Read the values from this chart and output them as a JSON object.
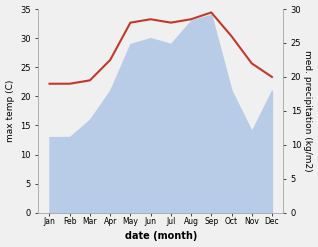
{
  "months": [
    "Jan",
    "Feb",
    "Mar",
    "Apr",
    "May",
    "Jun",
    "Jul",
    "Aug",
    "Sep",
    "Oct",
    "Nov",
    "Dec"
  ],
  "x": [
    0,
    1,
    2,
    3,
    4,
    5,
    6,
    7,
    8,
    9,
    10,
    11
  ],
  "temp": [
    13,
    13,
    16,
    21,
    29,
    30,
    29,
    33,
    34,
    21,
    14,
    21
  ],
  "precip": [
    19,
    19,
    19.5,
    22.5,
    28,
    28.5,
    28,
    28.5,
    29.5,
    26,
    22,
    20
  ],
  "temp_color": "#c0392b",
  "precip_fill_color": "#b8cce8",
  "title": "",
  "xlabel": "date (month)",
  "ylabel_left": "max temp (C)",
  "ylabel_right": "med. precipitation (kg/m2)",
  "ylim_left": [
    0,
    35
  ],
  "ylim_right": [
    0,
    30
  ],
  "yticks_left": [
    0,
    5,
    10,
    15,
    20,
    25,
    30,
    35
  ],
  "yticks_right": [
    0,
    5,
    10,
    15,
    20,
    25,
    30
  ],
  "bg_color": "#f0f0f0",
  "line_width": 1.5
}
